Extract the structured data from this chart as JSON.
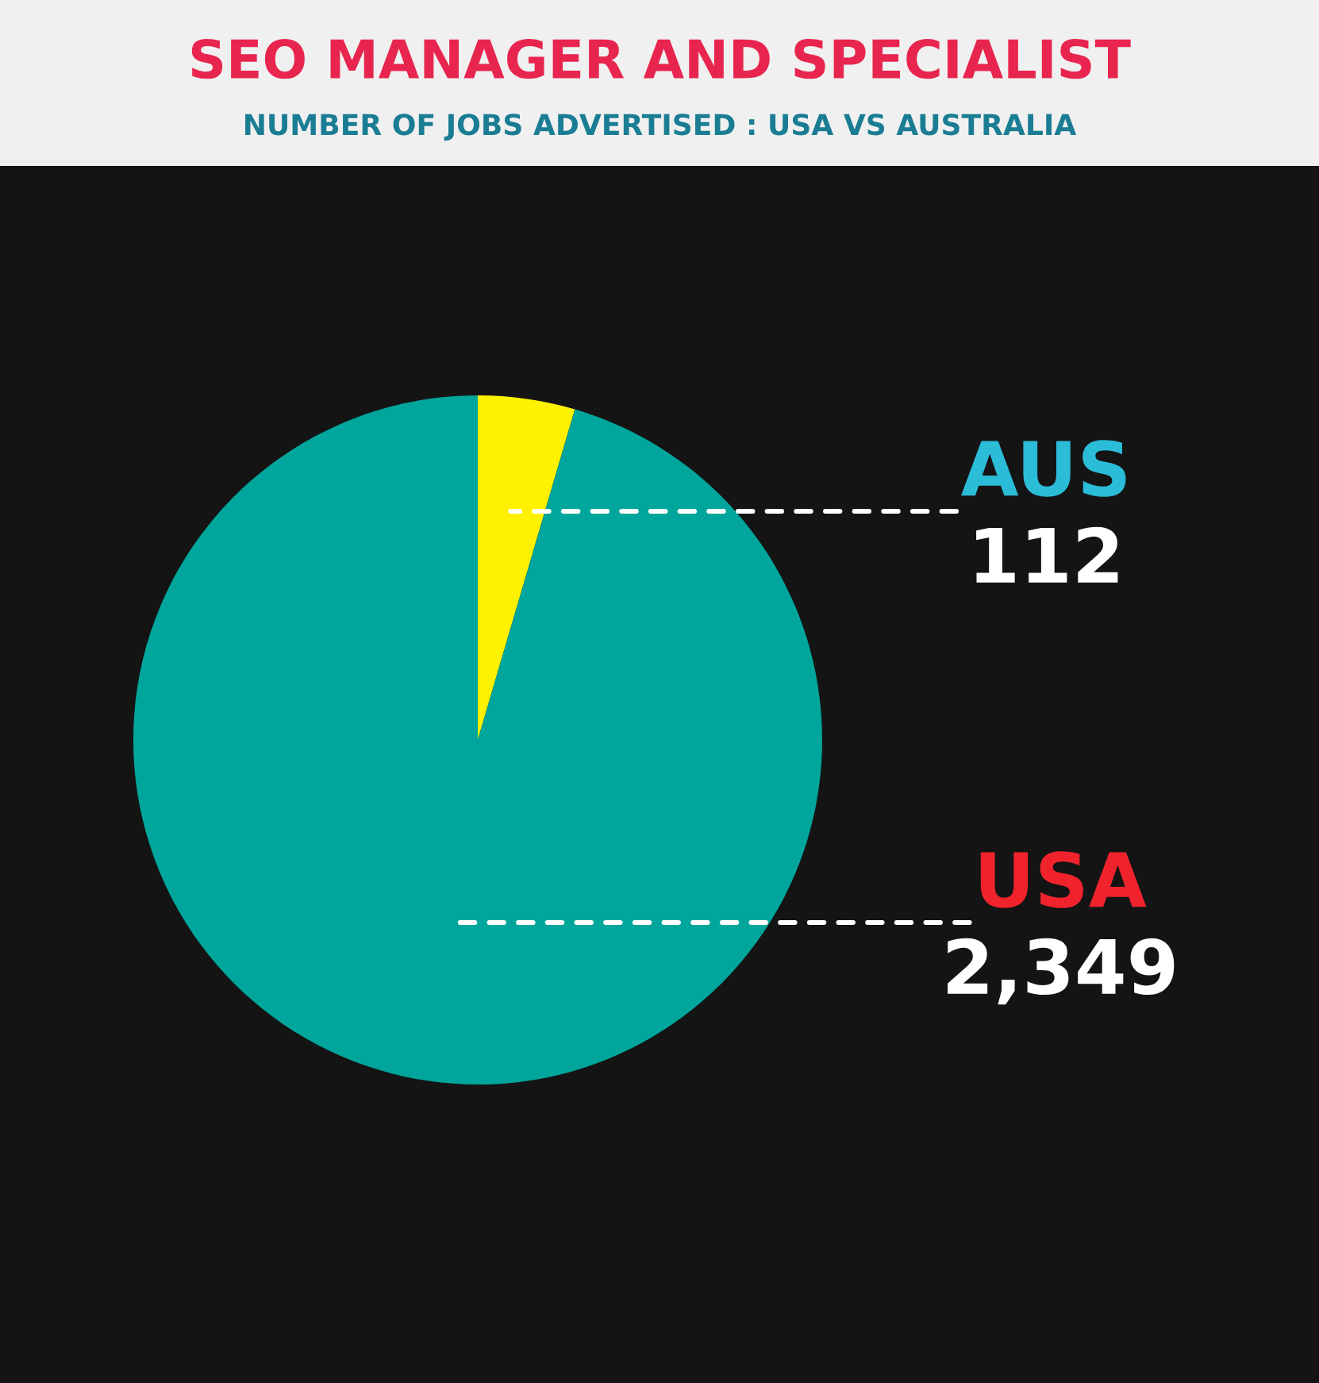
{
  "chart_data": {
    "type": "pie",
    "title": "SEO MANAGER AND SPECIALIST",
    "subtitle": "NUMBER OF JOBS ADVERTISED : USA VS AUSTRALIA",
    "categories": [
      "AUS",
      "USA"
    ],
    "values": [
      112,
      2349
    ],
    "colors": [
      "#fff200",
      "#00a69c"
    ],
    "value_labels": [
      "112",
      "2,349"
    ]
  }
}
